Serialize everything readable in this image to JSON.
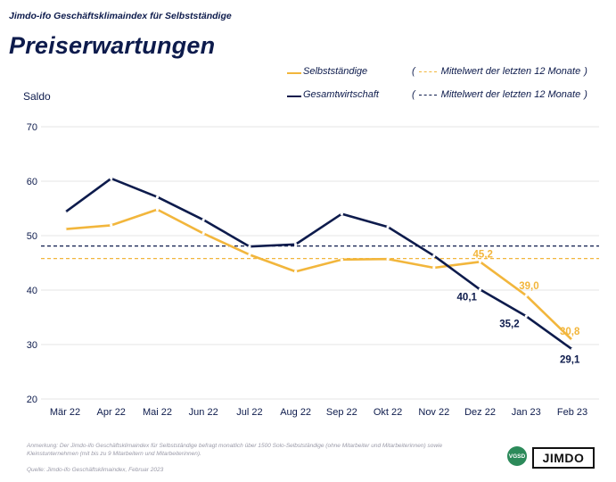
{
  "header": {
    "supertitle": "Jimdo-ifo Geschäftsklimaindex für Selbstständige",
    "title": "Preiserwartungen"
  },
  "legend": {
    "self_label": "Selbstständige",
    "self_mean_label": "Mittelwert der letzten 12 Monate",
    "total_label": "Gesamtwirtschaft",
    "total_mean_label": "Mittelwert der letzten 12 Monate",
    "open_paren": "(",
    "close_paren": ")"
  },
  "footnote": {
    "note": "Anmerkung: Der Jimdo-ifo Geschäftsklimaindex für Selbstständige befragt monatlich über 1500 Solo-Selbstständige (ohne Mitarbeiter und Mitarbeiterinnen) sowie Kleinstunternehmen (mit bis zu 9 Mitarbeitern und Mitarbeiterinnen).",
    "source": "Quelle: Jimdo-ifo Geschäftsklimaindex, Februar 2023"
  },
  "logos": {
    "vgsd": "VGSD",
    "jimdo": "JIMDO"
  },
  "colors": {
    "self": "#f2b63c",
    "total": "#0d1b4c",
    "grid": "#e4e4e4"
  },
  "chart_data": {
    "type": "line",
    "ylabel": "Saldo",
    "ylim": [
      20,
      70
    ],
    "yticks": [
      20,
      30,
      40,
      50,
      60,
      70
    ],
    "categories": [
      "Mär 22",
      "Apr 22",
      "Mai 22",
      "Jun 22",
      "Jul 22",
      "Aug 22",
      "Sep 22",
      "Okt 22",
      "Nov 22",
      "Dez 22",
      "Jan 23",
      "Feb 23"
    ],
    "series": [
      {
        "name": "Selbstständige",
        "key": "self",
        "values": [
          51.2,
          51.9,
          54.8,
          50.4,
          46.5,
          43.4,
          45.6,
          45.7,
          44.1,
          45.2,
          39.0,
          30.8
        ],
        "mean": 45.8,
        "labels": {
          "9": "45,2",
          "10": "39,0",
          "11": "30,8"
        }
      },
      {
        "name": "Gesamtwirtschaft",
        "key": "total",
        "values": [
          54.3,
          60.5,
          57.1,
          52.9,
          48.0,
          48.4,
          54.0,
          51.6,
          46.3,
          40.1,
          35.2,
          29.1
        ],
        "mean": 48.1,
        "labels": {
          "9": "40,1",
          "10": "35,2",
          "11": "29,1"
        }
      }
    ]
  }
}
